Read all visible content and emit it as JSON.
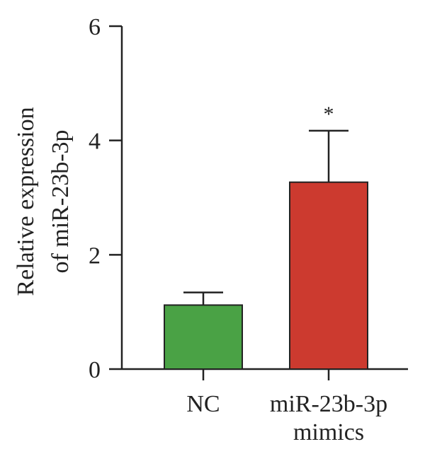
{
  "chart_data": {
    "type": "bar",
    "ylabel": [
      "Relative expression",
      "of miR-23b-3p"
    ],
    "ylim": [
      0,
      6
    ],
    "y_ticks": [
      0,
      2,
      4,
      6
    ],
    "y_tick_labels": [
      "0",
      "2",
      "4",
      "6"
    ],
    "categories": [
      [
        "NC"
      ],
      [
        "miR-23b-3p",
        "mimics"
      ]
    ],
    "values": [
      1.12,
      3.27
    ],
    "error_bars": [
      0.22,
      0.9
    ],
    "annotations": [
      "",
      "*"
    ],
    "colors": [
      "#4aa245",
      "#cc3a2f"
    ]
  }
}
